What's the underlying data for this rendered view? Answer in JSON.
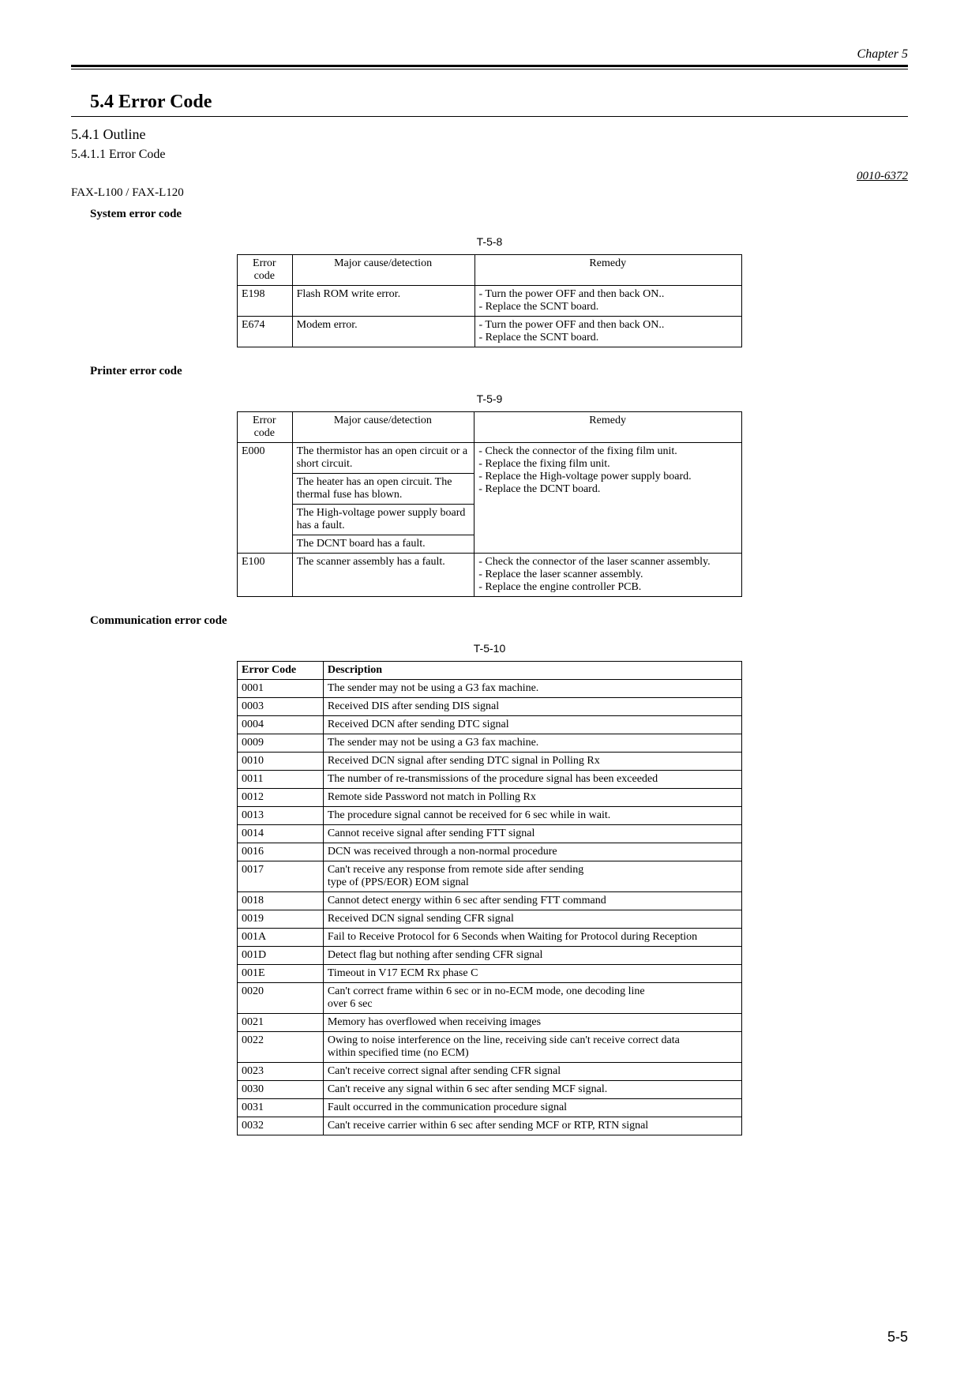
{
  "chapter_label": "Chapter 5",
  "section_title": "5.4 Error Code",
  "subsection_title": "5.4.1 Outline",
  "subsubsection_title": "5.4.1.1 Error Code",
  "ref_code": "0010-6372",
  "model_line": "FAX-L100 / FAX-L120",
  "system_error": {
    "heading": "System error code",
    "caption": "T-5-8",
    "headers": {
      "code": "Error code",
      "cause": "Major cause/detection",
      "remedy": "Remedy"
    },
    "rows": [
      {
        "code": "E198",
        "cause": "Flash ROM write error.",
        "remedy": "- Turn the power OFF and then back ON..\n- Replace the SCNT board."
      },
      {
        "code": "E674",
        "cause": "Modem error.",
        "remedy": "- Turn the power OFF and then back ON..\n- Replace the SCNT board."
      }
    ]
  },
  "printer_error": {
    "heading": "Printer error code",
    "caption": "T-5-9",
    "headers": {
      "code": "Error code",
      "cause": "Major cause/detection",
      "remedy": "Remedy"
    },
    "e000_code": "E000",
    "e000_causes": [
      "The thermistor has an open circuit or a short circuit.",
      "The heater has an open circuit. The thermal fuse has blown.",
      "The High-voltage power supply board has a fault.",
      "The DCNT board has a fault."
    ],
    "e000_remedy": "- Check the connector of the fixing film unit.\n- Replace the fixing film unit.\n- Replace the High-voltage power supply board.\n- Replace the DCNT board.",
    "e100": {
      "code": "E100",
      "cause": "The scanner assembly has a fault.",
      "remedy": "- Check the connector of the laser scanner assembly.\n- Replace the laser scanner assembly.\n- Replace the engine controller PCB."
    }
  },
  "comm_error": {
    "heading": "Communication error code",
    "caption": "T-5-10",
    "headers": {
      "code": "Error Code",
      "desc": "Description"
    },
    "rows": [
      {
        "code": "0001",
        "desc": "The sender may not be using a G3 fax machine."
      },
      {
        "code": "0003",
        "desc": "Received DIS after sending DIS signal"
      },
      {
        "code": "0004",
        "desc": "Received DCN after sending DTC signal"
      },
      {
        "code": "0009",
        "desc": "The sender may not be using a G3 fax machine."
      },
      {
        "code": "0010",
        "desc": "Received DCN signal after sending DTC signal in Polling Rx"
      },
      {
        "code": "0011",
        "desc": "The number of re-transmissions of the procedure signal has been exceeded"
      },
      {
        "code": "0012",
        "desc": "Remote side Password not match in Polling Rx"
      },
      {
        "code": "0013",
        "desc": "The procedure signal cannot be received for 6 sec while in wait."
      },
      {
        "code": "0014",
        "desc": "Cannot receive signal after sending FTT signal"
      },
      {
        "code": "0016",
        "desc": "DCN was received through a non-normal procedure"
      },
      {
        "code": "0017",
        "desc": "Can't receive any response from remote side after sending\ntype of (PPS/EOR) EOM signal"
      },
      {
        "code": "0018",
        "desc": "Cannot detect energy within 6 sec after sending FTT command"
      },
      {
        "code": "0019",
        "desc": "Received DCN signal sending CFR signal"
      },
      {
        "code": "001A",
        "desc": "Fail to Receive Protocol for 6 Seconds when Waiting for Protocol during Reception"
      },
      {
        "code": "001D",
        "desc": "Detect flag but nothing after sending CFR signal"
      },
      {
        "code": "001E",
        "desc": "Timeout in V17 ECM Rx phase C"
      },
      {
        "code": "0020",
        "desc": "Can't correct frame within 6 sec or in no-ECM mode, one decoding line\nover 6 sec"
      },
      {
        "code": "0021",
        "desc": "Memory has overflowed when receiving images"
      },
      {
        "code": "0022",
        "desc": "Owing to noise interference on the line, receiving side can't receive correct data\nwithin specified time (no ECM)"
      },
      {
        "code": "0023",
        "desc": "Can't receive correct signal after sending CFR signal"
      },
      {
        "code": "0030",
        "desc": "Can't receive any signal within 6 sec after sending MCF signal."
      },
      {
        "code": "0031",
        "desc": "Fault occurred in the communication procedure signal"
      },
      {
        "code": "0032",
        "desc": "Can't receive carrier within 6 sec after sending MCF or RTP, RTN signal"
      }
    ]
  },
  "page_number": "5-5"
}
